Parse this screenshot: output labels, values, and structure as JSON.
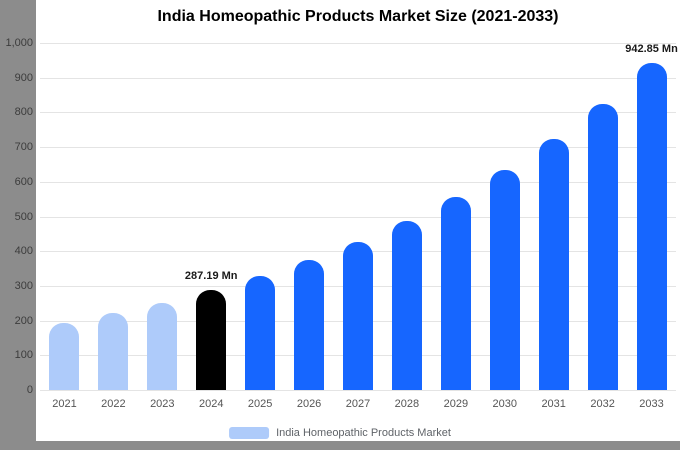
{
  "title": "India Homeopathic Products Market Size (2021-2033)",
  "legend": {
    "label": "India Homeopathic Products Market",
    "swatch_color": "#aecbfa"
  },
  "colors": {
    "past_bar": "#aecbfa",
    "base_year_bar": "#000000",
    "forecast_bar": "#1666ff",
    "frame": "#8c8c8c",
    "gridline": "#e4e4e4",
    "axis_text": "#3c3c3c",
    "xaxis_text": "#555555",
    "annotation_text": "#1a1a1a",
    "background": "#ffffff"
  },
  "chart_data": {
    "type": "bar",
    "title": "India Homeopathic Products Market Size (2021-2033)",
    "unit": "Mn",
    "categories": [
      "2021",
      "2022",
      "2023",
      "2024",
      "2025",
      "2026",
      "2027",
      "2028",
      "2029",
      "2030",
      "2031",
      "2032",
      "2033"
    ],
    "values": [
      194,
      221,
      252,
      287.19,
      328,
      374,
      426,
      486,
      555,
      633,
      722,
      824,
      942.85
    ],
    "bar_colors": [
      "#aecbfa",
      "#aecbfa",
      "#aecbfa",
      "#000000",
      "#1666ff",
      "#1666ff",
      "#1666ff",
      "#1666ff",
      "#1666ff",
      "#1666ff",
      "#1666ff",
      "#1666ff",
      "#1666ff"
    ],
    "annotations": [
      {
        "category": "2024",
        "text": "287.19 Mn"
      },
      {
        "category": "2033",
        "text": "942.85 Mn"
      }
    ],
    "ylim": [
      0,
      1000
    ],
    "ytick_step": 100,
    "ytick_labels": [
      "0",
      "100",
      "200",
      "300",
      "400",
      "500",
      "600",
      "700",
      "800",
      "900",
      "1,000"
    ],
    "grid": true,
    "xlabel": "",
    "ylabel": "",
    "legend_entries": [
      "India Homeopathic Products Market"
    ],
    "legend_position": "bottom"
  }
}
